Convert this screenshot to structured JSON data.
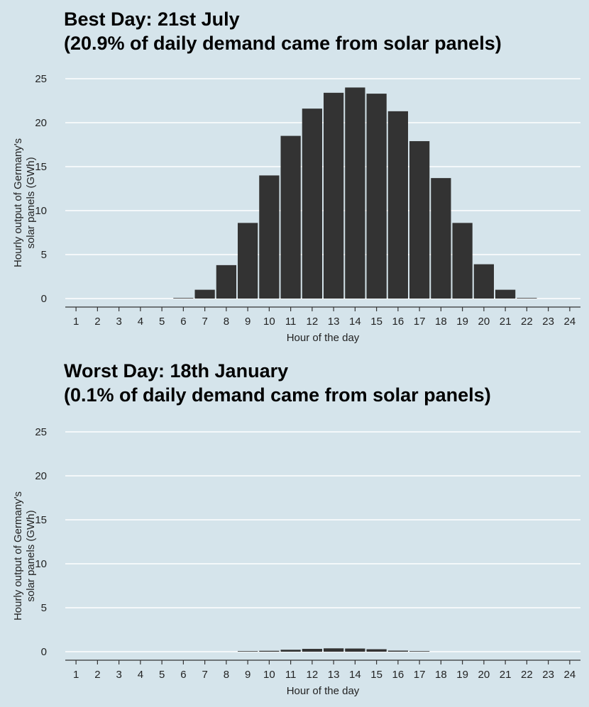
{
  "chart_data": [
    {
      "type": "bar",
      "title": "Best Day: 21st July",
      "subtitle": "(20.9% of daily demand came from solar panels)",
      "xlabel": "Hour of the day",
      "ylabel": "Hourly output of Germany's solar panels (GWh)",
      "ylabel_lines": [
        "Hourly output of Germany's",
        "solar panels (GWh)"
      ],
      "categories": [
        "1",
        "2",
        "3",
        "4",
        "5",
        "6",
        "7",
        "8",
        "9",
        "10",
        "11",
        "12",
        "13",
        "14",
        "15",
        "16",
        "17",
        "18",
        "19",
        "20",
        "21",
        "22",
        "23",
        "24"
      ],
      "values": [
        0,
        0,
        0,
        0,
        0,
        0.05,
        1.0,
        3.8,
        8.6,
        14.0,
        18.5,
        21.6,
        23.4,
        24.0,
        23.3,
        21.3,
        17.9,
        13.7,
        8.6,
        3.9,
        1.0,
        0.05,
        0,
        0
      ],
      "yticks": [
        0,
        5,
        10,
        15,
        20,
        25
      ],
      "ylim": [
        0,
        25
      ],
      "grid": true,
      "bar_color": "#333333",
      "background": "#d5e4eb"
    },
    {
      "type": "bar",
      "title": "Worst Day: 18th January",
      "subtitle": "(0.1% of daily demand came from solar panels)",
      "xlabel": "Hour of the day",
      "ylabel": "Hourly output of Germany's solar panels (GWh)",
      "ylabel_lines": [
        "Hourly output of Germany's",
        "solar panels (GWh)"
      ],
      "categories": [
        "1",
        "2",
        "3",
        "4",
        "5",
        "6",
        "7",
        "8",
        "9",
        "10",
        "11",
        "12",
        "13",
        "14",
        "15",
        "16",
        "17",
        "18",
        "19",
        "20",
        "21",
        "22",
        "23",
        "24"
      ],
      "values": [
        0,
        0,
        0,
        0,
        0,
        0,
        0,
        0,
        0.02,
        0.1,
        0.22,
        0.32,
        0.38,
        0.36,
        0.28,
        0.12,
        0.02,
        0,
        0,
        0,
        0,
        0,
        0,
        0
      ],
      "yticks": [
        0,
        5,
        10,
        15,
        20,
        25
      ],
      "ylim": [
        0,
        25
      ],
      "grid": true,
      "bar_color": "#333333",
      "background": "#d5e4eb"
    }
  ]
}
